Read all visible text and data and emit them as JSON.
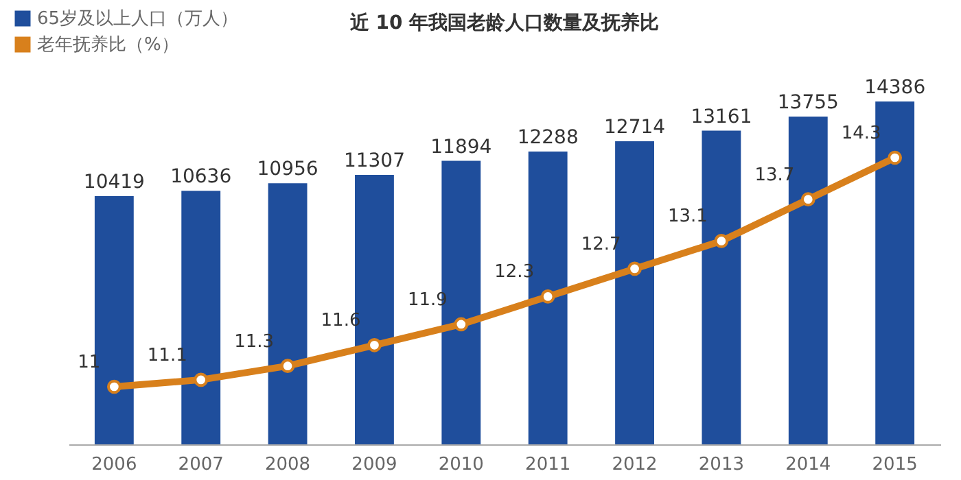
{
  "chart_data": {
    "type": "bar",
    "title": "近 10 年我国老龄人口数量及抚养比",
    "categories": [
      "2006",
      "2007",
      "2008",
      "2009",
      "2010",
      "2011",
      "2012",
      "2013",
      "2014",
      "2015"
    ],
    "series": [
      {
        "name": "65岁及以上人口（万人）",
        "type": "bar",
        "color": "#1f4e9c",
        "values": [
          10419,
          10636,
          10956,
          11307,
          11894,
          12288,
          12714,
          13161,
          13755,
          14386
        ]
      },
      {
        "name": "老年抚养比（%）",
        "type": "line",
        "axis": "y2",
        "color": "#d8801c",
        "marker": "circle",
        "values": [
          11,
          11.1,
          11.3,
          11.6,
          11.9,
          12.3,
          12.7,
          13.1,
          13.7,
          14.3
        ]
      }
    ],
    "data_labels": true,
    "legend": "top left",
    "grid": false,
    "tick_labels": "x"
  }
}
